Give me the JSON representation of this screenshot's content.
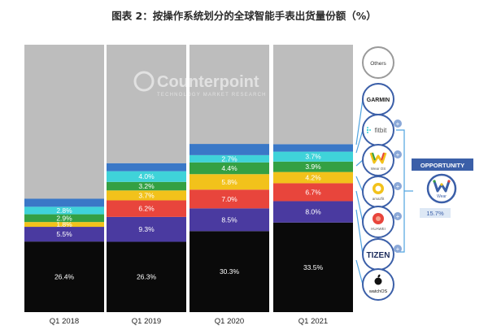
{
  "chart_data": {
    "type": "bar",
    "stacked": true,
    "title": "图表 2：按操作系统划分的全球智能手表出货量份额（%）",
    "categories": [
      "Q1 2018",
      "Q1 2019",
      "Q1 2020",
      "Q1 2021"
    ],
    "ylim": [
      0,
      100
    ],
    "series": [
      {
        "key": "watchos",
        "color": "#0a0a0a",
        "values": [
          26.4,
          26.3,
          30.3,
          33.5
        ],
        "labels": [
          "26.4%",
          "26.3%",
          "30.3%",
          "33.5%"
        ]
      },
      {
        "key": "tizen",
        "color": "#4a3aa0",
        "values": [
          5.5,
          9.3,
          8.5,
          8.0
        ],
        "labels": [
          "5.5%",
          "9.3%",
          "8.5%",
          "8.0%"
        ]
      },
      {
        "key": "huawei",
        "color": "#e8453c",
        "values": [
          0,
          6.2,
          7.0,
          6.7
        ],
        "labels": [
          "",
          "6.2%",
          "7.0%",
          "6.7%"
        ]
      },
      {
        "key": "amazfit",
        "color": "#f2c21b",
        "values": [
          1.8,
          3.7,
          5.8,
          4.2
        ],
        "labels": [
          "1.8%",
          "3.7%",
          "5.8%",
          "4.2%"
        ]
      },
      {
        "key": "wearos",
        "color": "#34a043",
        "values": [
          2.9,
          3.2,
          4.4,
          3.9
        ],
        "labels": [
          "2.9%",
          "3.2%",
          "4.4%",
          "3.9%"
        ]
      },
      {
        "key": "fitbit",
        "color": "#3fd3d9",
        "values": [
          2.8,
          4.0,
          2.7,
          3.7
        ],
        "labels": [
          "2.8%",
          "4.0%",
          "2.7%",
          "3.7%"
        ]
      },
      {
        "key": "garmin",
        "color": "#3a78c7",
        "values": [
          3.0,
          3.0,
          4.2,
          2.8
        ],
        "labels": [
          "",
          "",
          "",
          ""
        ]
      },
      {
        "key": "others",
        "color": "#bdbdbd",
        "values": [
          57.6,
          44.3,
          37.1,
          37.2
        ],
        "labels": [
          "",
          "",
          "",
          ""
        ]
      }
    ]
  },
  "legend": {
    "others_text": "Others",
    "garmin_text": "GARMIN",
    "fitbit_text": "fitbit",
    "wearos_text": "Wear OS",
    "amazfit_text": "amazfit",
    "huawei_text": "HUAWEI",
    "tizen_text": "TIZEN",
    "watchos_text": "watchOS",
    "plus_sign": "+"
  },
  "opportunity": {
    "label": "OPPORTUNITY",
    "wear_text": "Wear",
    "value": "15.7%"
  },
  "watermark": {
    "brand": "Counterpoint",
    "tagline": "TECHNOLOGY MARKET RESEARCH"
  },
  "colors": {
    "accent": "#3b5fa8",
    "connector": "#4fa3e0",
    "others_ring": "#9a9a9a"
  }
}
